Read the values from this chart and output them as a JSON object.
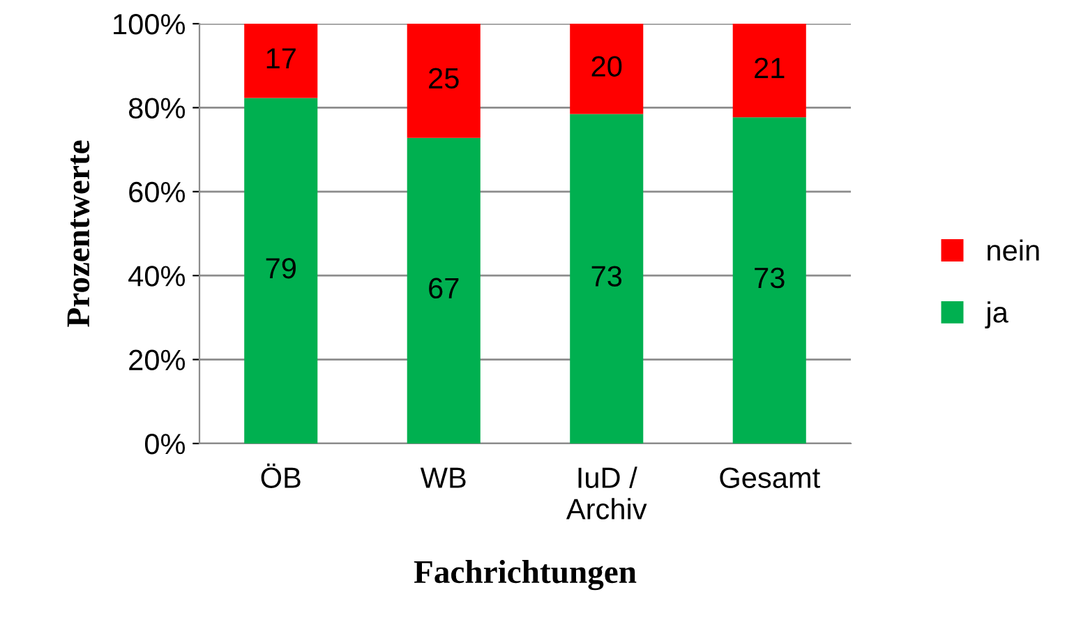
{
  "chart_data": {
    "type": "bar",
    "stacked": true,
    "xlabel": "Fachrichtungen",
    "ylabel": "Prozentwerte",
    "categories": [
      "ÖB",
      "WB",
      "IuD /\nArchiv",
      "Gesamt"
    ],
    "series": [
      {
        "name": "ja",
        "color": "#00b050",
        "values": [
          82.3,
          72.8,
          78.5,
          77.7
        ]
      },
      {
        "name": "nein",
        "color": "#ff0000",
        "values": [
          17.7,
          27.2,
          21.5,
          22.3
        ]
      }
    ],
    "annotations": [
      "79",
      "67",
      "73",
      "73",
      "17",
      "25",
      "20",
      "21"
    ],
    "ylim": [
      0,
      100
    ],
    "yticks": [
      {
        "value": 0,
        "label": "0%"
      },
      {
        "value": 20,
        "label": "20%"
      },
      {
        "value": 40,
        "label": "40%"
      },
      {
        "value": 60,
        "label": "60%"
      },
      {
        "value": 80,
        "label": "80%"
      },
      {
        "value": 100,
        "label": "100%"
      }
    ],
    "grid": "y",
    "legend": "right"
  }
}
